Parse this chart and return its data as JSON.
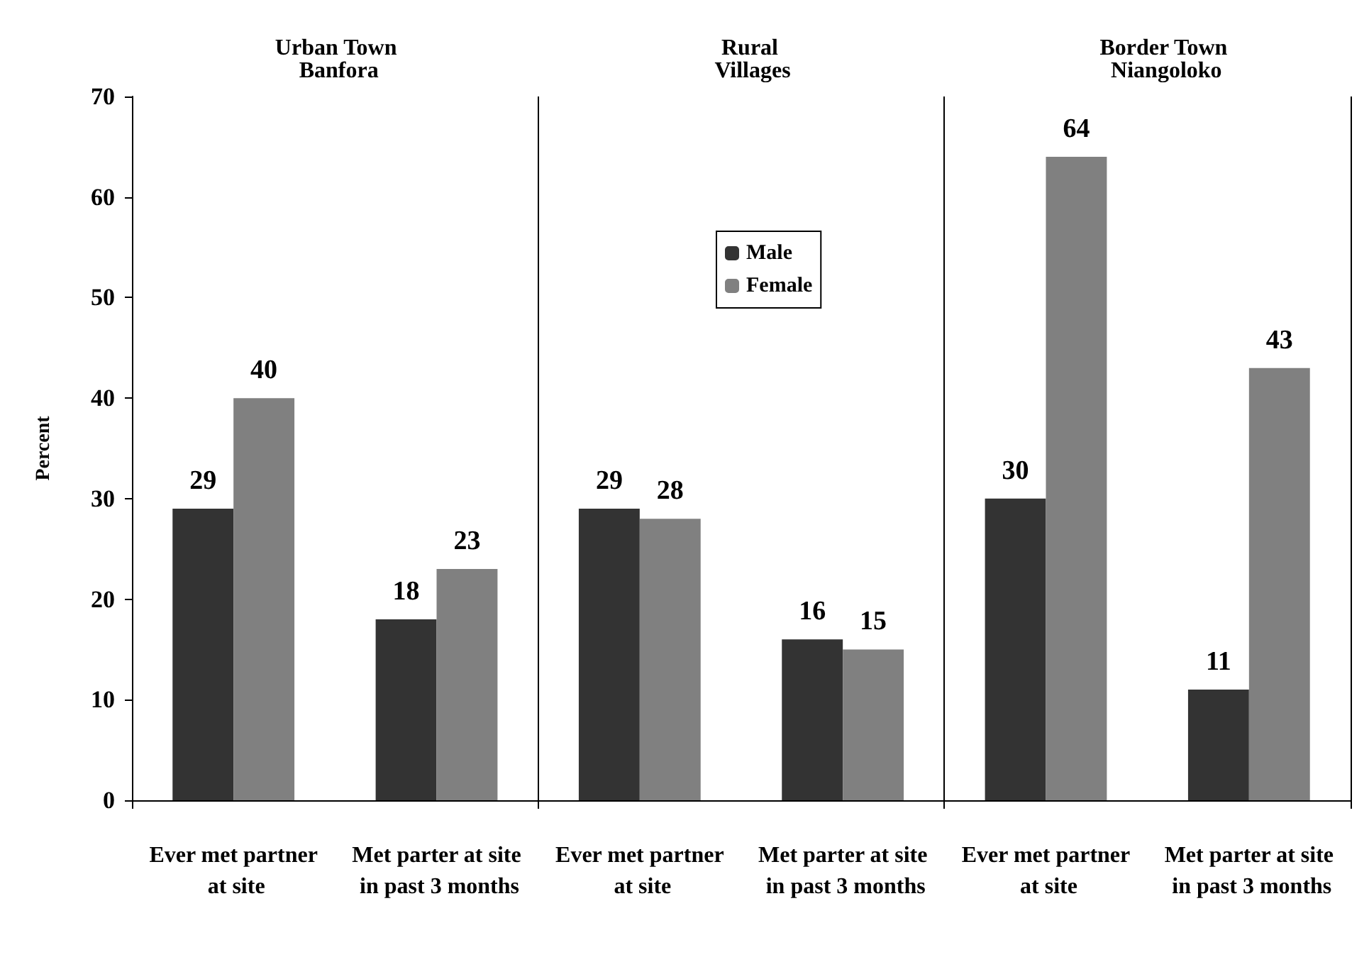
{
  "chart_data": {
    "type": "bar",
    "ylabel": "Percent",
    "categories": [
      "Ever met partner at site",
      "Met parter at site in past 3 months",
      "Ever met partner at site",
      "Met parter at site in past 3 months",
      "Ever met partner at site",
      "Met parter at site in past 3 months"
    ],
    "series": [
      {
        "name": "Male",
        "color": "#333333",
        "values": [
          29,
          18,
          29,
          16,
          30,
          11
        ]
      },
      {
        "name": "Female",
        "color": "#808080",
        "values": [
          40,
          23,
          28,
          15,
          64,
          43
        ]
      }
    ],
    "annotations": [
      "Urban Town Banfora",
      "Rural Villages",
      "Border Town Niangoloko"
    ],
    "ylim": [
      0,
      70
    ],
    "yticks": [
      0,
      10,
      20,
      30,
      40,
      50,
      60,
      70
    ],
    "grid": "x",
    "legend": "top center",
    "data_labels": true
  }
}
